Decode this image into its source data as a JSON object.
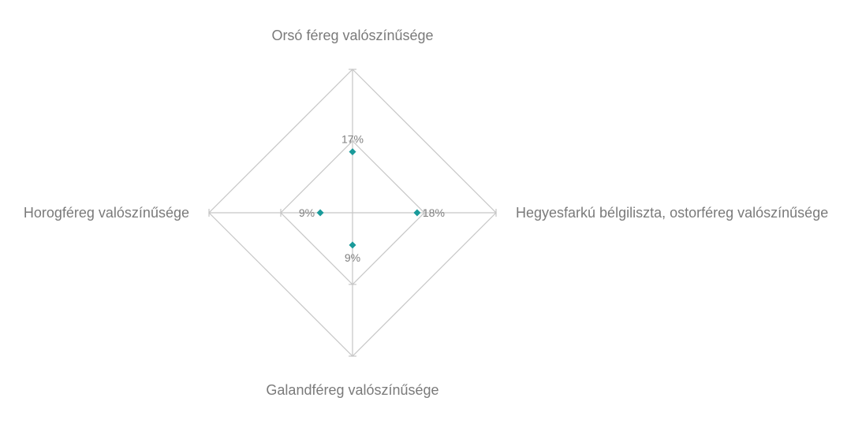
{
  "chart_data": {
    "type": "radar",
    "title": "",
    "categories": [
      "Orsó féreg valószínűsége",
      "Hegyesfarkú bélgiliszta, ostorféreg valószínűsége",
      "Galandféreg valószínűsége",
      "Horogféreg valószínűsége"
    ],
    "series": [
      {
        "values": [
          0.17,
          0.18,
          0.09,
          0.09
        ],
        "labels": [
          "17%",
          "18%",
          "9%",
          "9%"
        ],
        "color": "#1a9a9a",
        "marker": "diamond"
      }
    ],
    "rlim": [
      0,
      0.4
    ],
    "grid_levels": [
      0,
      0.2,
      0.4
    ],
    "grid": true,
    "legend": "none"
  },
  "colors": {
    "grid": "#c6c6c6",
    "axis_text": "#7a7a7a",
    "data_label": "#808080",
    "marker": "#1a9a9a"
  }
}
